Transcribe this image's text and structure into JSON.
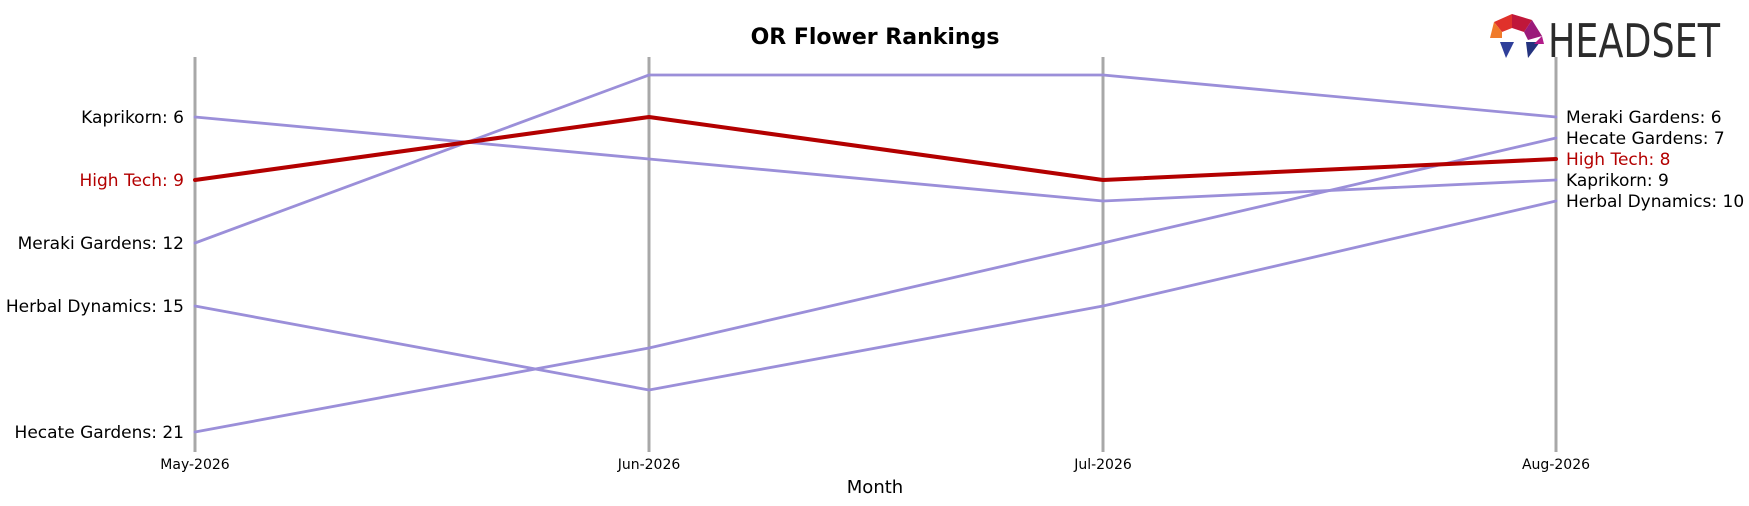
{
  "chart_data": {
    "type": "line",
    "title": "OR Flower Rankings",
    "xlabel": "Month",
    "ylabel": "",
    "categories": [
      "May-2026",
      "Jun-2026",
      "Jul-2026",
      "Aug-2026"
    ],
    "y_inverted": true,
    "ylim": [
      4,
      21
    ],
    "grid": false,
    "legend": "none",
    "highlight_series": "High Tech",
    "colors": {
      "highlight": "#b30000",
      "other": "#9b8fd9",
      "axis": "#a8a8a8"
    },
    "series": [
      {
        "name": "Kaprikorn",
        "values": [
          6,
          8,
          10,
          9
        ],
        "left_label": "Kaprikorn: 6",
        "right_label": "Kaprikorn: 9"
      },
      {
        "name": "High Tech",
        "values": [
          9,
          6,
          9,
          8
        ],
        "left_label": "High Tech: 9",
        "right_label": "High Tech: 8"
      },
      {
        "name": "Meraki Gardens",
        "values": [
          12,
          4,
          4,
          6
        ],
        "left_label": "Meraki Gardens: 12",
        "right_label": "Meraki Gardens: 6"
      },
      {
        "name": "Herbal Dynamics",
        "values": [
          15,
          19,
          15,
          10
        ],
        "left_label": "Herbal Dynamics: 15",
        "right_label": "Herbal Dynamics: 10"
      },
      {
        "name": "Hecate Gardens",
        "values": [
          21,
          17,
          12,
          7
        ],
        "left_label": "Hecate Gardens: 21",
        "right_label": "Hecate Gardens: 7"
      }
    ]
  },
  "logo": {
    "text": "HEADSET"
  }
}
